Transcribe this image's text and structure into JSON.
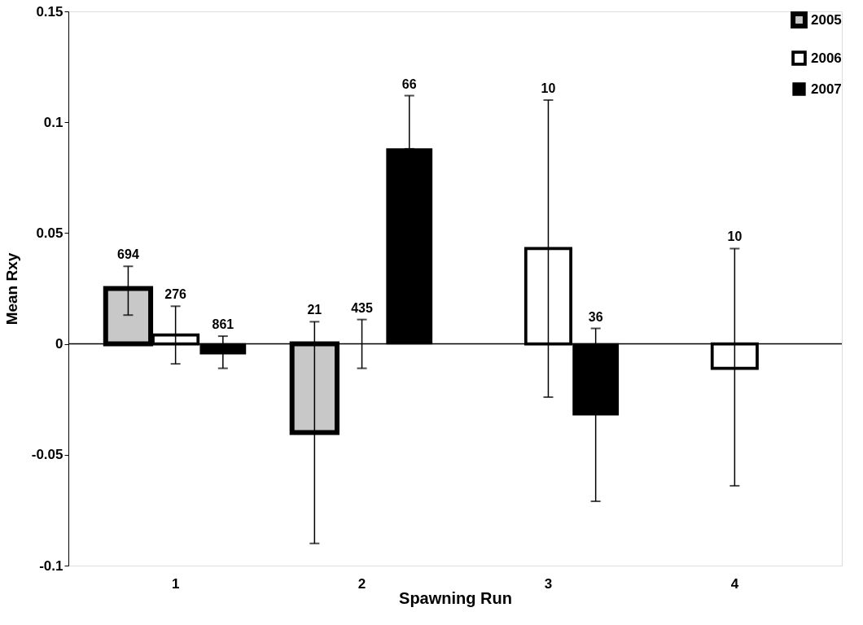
{
  "chart_data": {
    "type": "bar",
    "xlabel": "Spawning Run",
    "ylabel": "Mean Rxy",
    "categories": [
      "1",
      "2",
      "3",
      "4"
    ],
    "series": [
      {
        "name": "2005",
        "color": "#c8c8c8",
        "values": [
          0.025,
          -0.04,
          null,
          null
        ],
        "errors": [
          [
            0.013,
            0.035
          ],
          [
            -0.09,
            0.01
          ],
          null,
          null
        ]
      },
      {
        "name": "2006",
        "color": "#ffffff",
        "values": [
          0.004,
          0.0,
          0.043,
          -0.011
        ],
        "errors": [
          [
            -0.009,
            0.017
          ],
          [
            -0.011,
            0.011
          ],
          [
            -0.024,
            0.11
          ],
          [
            -0.064,
            0.043
          ]
        ]
      },
      {
        "name": "2007",
        "color": "#000000",
        "values": [
          -0.0045,
          0.088,
          -0.032,
          null
        ],
        "errors": [
          [
            -0.011,
            0.0035
          ],
          [
            0.088,
            0.112
          ],
          [
            -0.071,
            0.007
          ],
          null
        ]
      }
    ],
    "annotations": [
      "694",
      "21",
      "276",
      "435",
      "10",
      "10",
      "861",
      "66",
      "36"
    ],
    "ylim": [
      -0.1,
      0.15
    ],
    "yticks": [
      -0.1,
      -0.05,
      0,
      0.05,
      0.1,
      0.15
    ],
    "legend": "top right"
  }
}
